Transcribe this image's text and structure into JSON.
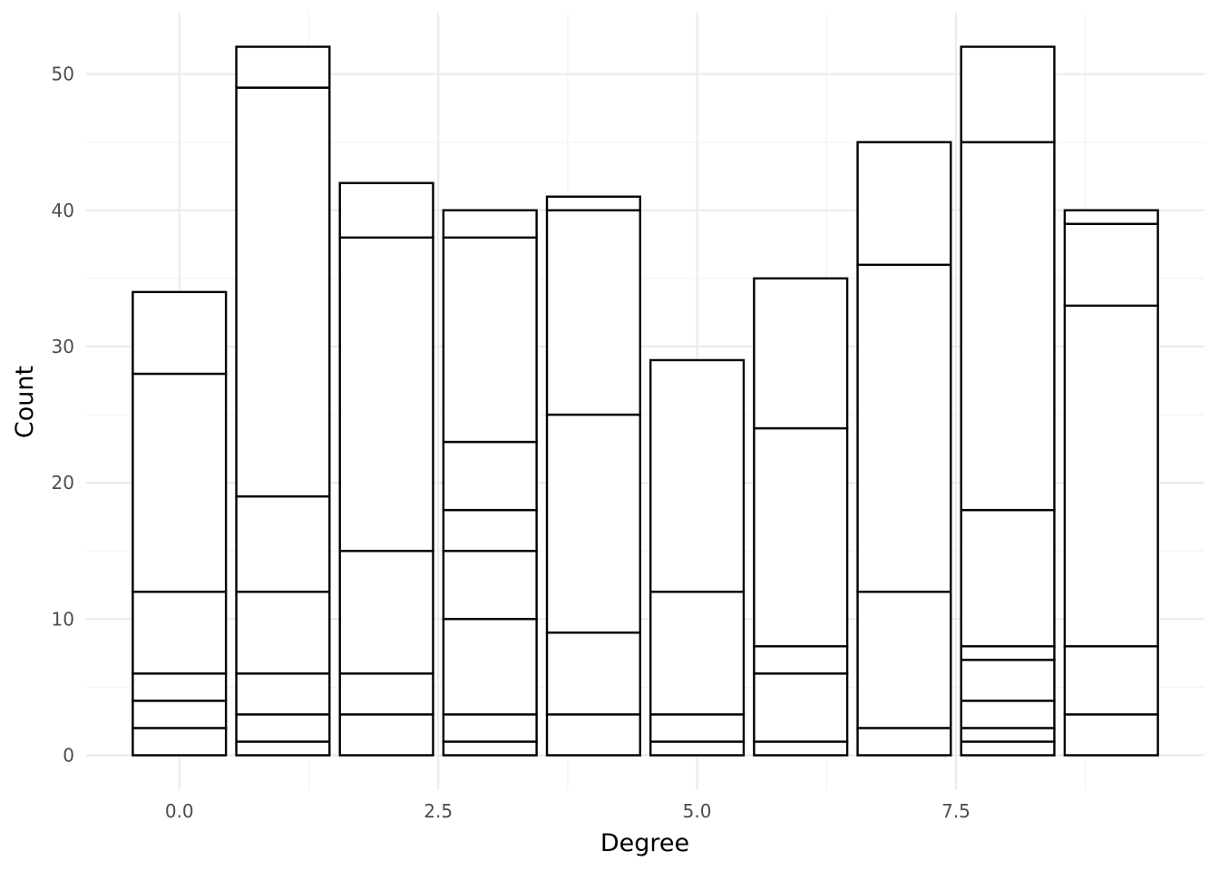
{
  "chart_data": {
    "type": "bar",
    "stacked": true,
    "xlabel": "Degree",
    "ylabel": "Count",
    "xlim": [
      -0.9,
      9.9
    ],
    "ylim": [
      -2.5,
      54.5
    ],
    "x_ticks": [
      0.0,
      2.5,
      5.0,
      7.5
    ],
    "x_tick_labels": [
      "0.0",
      "2.5",
      "5.0",
      "7.5"
    ],
    "y_ticks": [
      0,
      10,
      20,
      30,
      40,
      50
    ],
    "y_tick_labels": [
      "0",
      "10",
      "20",
      "30",
      "40",
      "50"
    ],
    "grid": true,
    "legend": "none",
    "bar_fill": "#ffffff",
    "bar_outline": "#000000",
    "bar_width": 0.9,
    "bars": [
      {
        "x": 0,
        "boundaries": [
          2,
          4,
          6,
          12,
          28,
          34
        ]
      },
      {
        "x": 1,
        "boundaries": [
          1,
          3,
          6,
          12,
          19,
          49,
          52
        ]
      },
      {
        "x": 2,
        "boundaries": [
          3,
          6,
          15,
          38,
          42
        ]
      },
      {
        "x": 3,
        "boundaries": [
          1,
          3,
          10,
          15,
          18,
          23,
          38,
          40
        ]
      },
      {
        "x": 4,
        "boundaries": [
          3,
          9,
          25,
          40,
          41
        ]
      },
      {
        "x": 5,
        "boundaries": [
          1,
          3,
          12,
          29
        ]
      },
      {
        "x": 6,
        "boundaries": [
          1,
          6,
          8,
          24,
          35
        ]
      },
      {
        "x": 7,
        "boundaries": [
          2,
          12,
          36,
          45
        ]
      },
      {
        "x": 8,
        "boundaries": [
          1,
          2,
          4,
          7,
          8,
          18,
          45,
          52
        ]
      },
      {
        "x": 9,
        "boundaries": [
          3,
          8,
          33,
          39,
          40
        ]
      }
    ]
  }
}
